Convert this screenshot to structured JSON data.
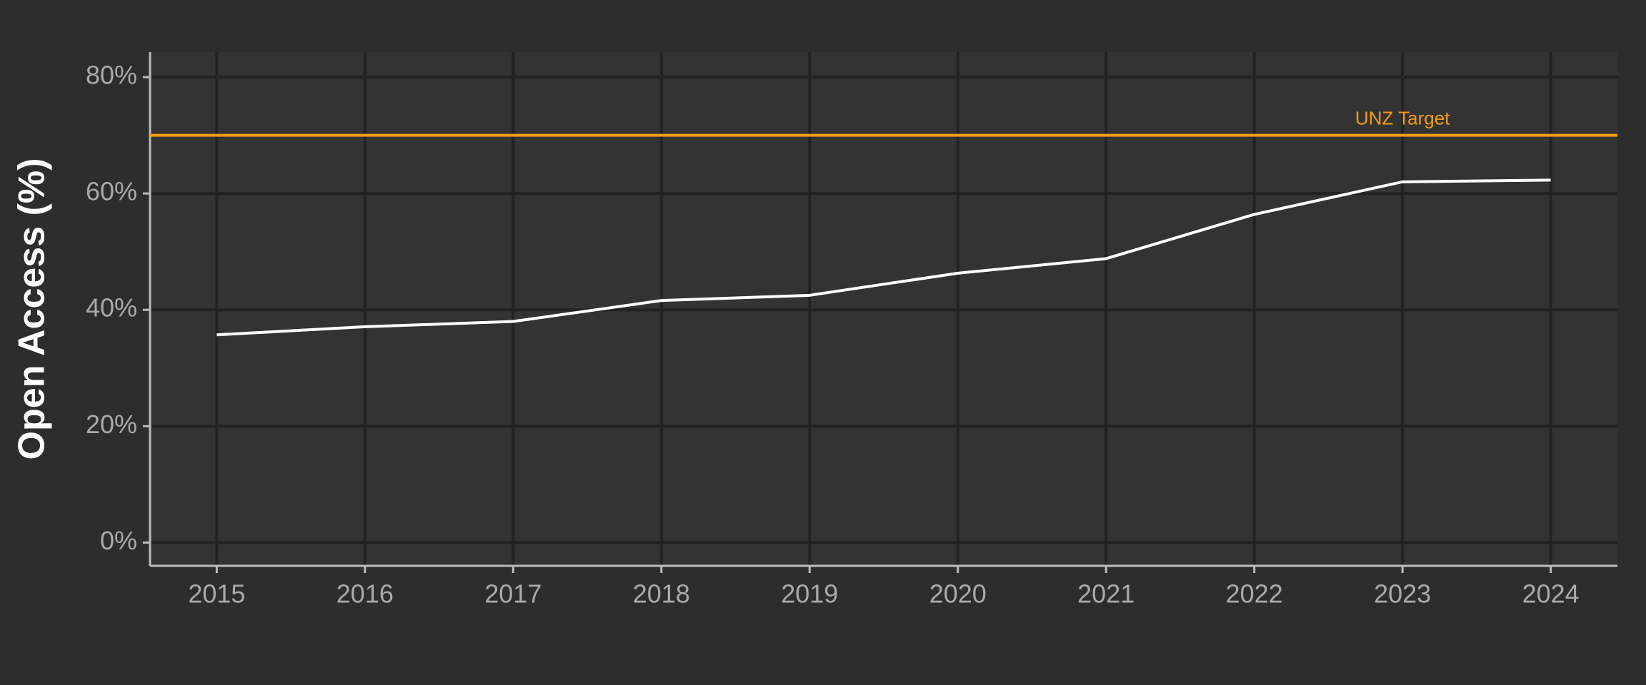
{
  "chart_data": {
    "type": "line",
    "y_label": "Open Access (%)",
    "x": [
      2015,
      2016,
      2017,
      2018,
      2019,
      2020,
      2021,
      2022,
      2023,
      2024
    ],
    "series": [
      {
        "color": "#ffffff",
        "values": [
          35.7,
          37.1,
          38.0,
          41.6,
          42.5,
          46.3,
          48.8,
          56.4,
          62.0,
          62.3
        ]
      }
    ],
    "reference_line": {
      "value": 70,
      "label": "UNZ Target",
      "color": "#f39c12"
    },
    "xlim": [
      2014.55,
      2024.45
    ],
    "xticks": [
      2015,
      2016,
      2017,
      2018,
      2019,
      2020,
      2021,
      2022,
      2023,
      2024
    ],
    "ylim": [
      -4,
      84.3
    ],
    "yticks": [
      {
        "value": 0,
        "label": "0%"
      },
      {
        "value": 20,
        "label": "20%"
      },
      {
        "value": 40,
        "label": "40%"
      },
      {
        "value": 60,
        "label": "60%"
      },
      {
        "value": 80,
        "label": "80%"
      }
    ],
    "grid": true
  }
}
